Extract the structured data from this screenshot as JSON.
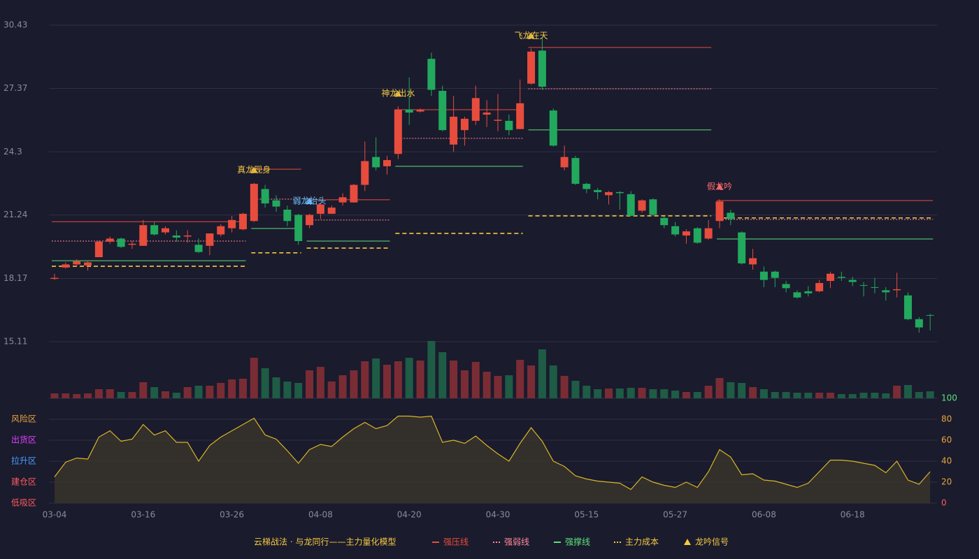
{
  "chart_data": {
    "type": "candlestick",
    "title": "云梯战法 · 与龙同行——主力量化模型",
    "categories": [
      "03-04",
      null,
      null,
      null,
      null,
      null,
      null,
      null,
      "03-16",
      null,
      null,
      null,
      null,
      null,
      null,
      null,
      "03-26",
      null,
      null,
      null,
      null,
      null,
      null,
      null,
      "04-08",
      null,
      null,
      null,
      null,
      null,
      null,
      null,
      "04-20",
      null,
      null,
      null,
      null,
      null,
      null,
      null,
      "04-30",
      null,
      null,
      null,
      null,
      null,
      null,
      null,
      "05-15",
      null,
      null,
      null,
      null,
      null,
      null,
      null,
      "05-27",
      null,
      null,
      null,
      null,
      null,
      null,
      null,
      "06-08",
      null,
      null,
      null,
      null,
      null,
      null,
      null,
      "06-18",
      null,
      null,
      null,
      null,
      null,
      null,
      null
    ],
    "ylim": [
      15.11,
      30.43
    ],
    "yticks": [
      30.43,
      27.37,
      24.3,
      21.24,
      18.17,
      15.11
    ],
    "up_color": "#e84c3d",
    "down_color": "#22a95e",
    "up_volume_color": "#7a2c35",
    "down_volume_color": "#1e5c45",
    "open": [
      18.15,
      18.7,
      18.85,
      18.8,
      19.2,
      19.95,
      20.1,
      19.8,
      19.75,
      20.75,
      20.4,
      20.25,
      20.2,
      19.8,
      19.75,
      20.3,
      20.6,
      20.55,
      20.95,
      22.5,
      21.95,
      21.5,
      21.25,
      20.75,
      21.3,
      21.3,
      21.85,
      21.85,
      22.7,
      24.05,
      23.6,
      24.2,
      26.35,
      26.25,
      28.8,
      27.25,
      24.65,
      25.35,
      25.8,
      26.1,
      25.8,
      25.8,
      25.4,
      27.6,
      29.2,
      26.3,
      23.55,
      24.0,
      22.75,
      22.45,
      22.2,
      22.35,
      22.25,
      21.45,
      22.0,
      21.1,
      20.7,
      20.25,
      20.6,
      20.1,
      20.95,
      21.35,
      20.4,
      18.85,
      18.5,
      18.5,
      17.9,
      17.5,
      17.55,
      17.55,
      18.05,
      18.25,
      18.1,
      17.85,
      17.75,
      17.6,
      17.6,
      17.35,
      16.2,
      16.4
    ],
    "close": [
      18.2,
      18.85,
      19.0,
      18.95,
      19.95,
      20.1,
      19.7,
      19.85,
      20.75,
      20.3,
      20.6,
      20.15,
      20.25,
      19.45,
      20.35,
      20.7,
      21.0,
      21.3,
      22.75,
      21.8,
      21.65,
      20.95,
      19.98,
      21.25,
      21.75,
      21.6,
      22.1,
      22.7,
      23.85,
      23.55,
      23.9,
      26.35,
      26.2,
      26.35,
      27.3,
      25.35,
      26.0,
      25.9,
      26.9,
      26.2,
      25.85,
      25.35,
      26.65,
      29.15,
      27.45,
      24.6,
      24.05,
      22.75,
      22.5,
      22.35,
      22.35,
      22.3,
      21.2,
      21.95,
      21.25,
      20.75,
      20.3,
      20.45,
      19.9,
      20.6,
      21.9,
      21.05,
      18.9,
      19.15,
      18.1,
      18.2,
      17.7,
      17.25,
      17.45,
      17.95,
      18.4,
      18.2,
      18.0,
      17.82,
      17.73,
      17.5,
      17.65,
      16.2,
      15.8,
      16.38
    ],
    "high": [
      18.4,
      18.95,
      19.1,
      19.0,
      20.0,
      20.2,
      20.15,
      20.0,
      21.0,
      20.9,
      20.7,
      20.5,
      20.5,
      20.1,
      20.35,
      20.8,
      21.2,
      21.35,
      22.8,
      22.7,
      22.2,
      21.7,
      21.3,
      21.3,
      21.8,
      21.7,
      22.3,
      22.75,
      24.8,
      25.0,
      24.1,
      26.5,
      27.9,
      26.4,
      29.1,
      27.5,
      27.0,
      26.0,
      27.5,
      26.8,
      27.1,
      26.1,
      27.8,
      29.3,
      29.8,
      26.4,
      24.6,
      24.1,
      22.8,
      22.55,
      22.4,
      22.4,
      22.4,
      22.0,
      22.05,
      21.15,
      20.9,
      20.55,
      20.65,
      21.0,
      22.0,
      21.5,
      20.45,
      19.6,
      18.75,
      18.55,
      18.05,
      17.6,
      17.8,
      18.1,
      18.5,
      18.5,
      18.25,
      18.0,
      18.2,
      17.75,
      18.45,
      17.5,
      16.3,
      16.45
    ],
    "low": [
      18.1,
      18.65,
      18.75,
      18.55,
      19.2,
      19.85,
      19.65,
      19.6,
      19.75,
      20.25,
      20.3,
      19.95,
      19.9,
      19.4,
      19.3,
      20.2,
      20.4,
      20.5,
      20.9,
      21.6,
      21.4,
      20.7,
      19.8,
      20.6,
      21.05,
      21.3,
      21.7,
      21.85,
      22.4,
      23.4,
      23.2,
      23.95,
      25.6,
      26.2,
      27.0,
      25.3,
      24.3,
      24.6,
      25.6,
      25.5,
      25.3,
      25.1,
      25.4,
      27.55,
      27.3,
      24.55,
      23.4,
      22.7,
      22.3,
      22.0,
      21.75,
      21.5,
      21.2,
      21.35,
      21.2,
      20.6,
      20.2,
      19.85,
      19.85,
      20.05,
      20.6,
      20.75,
      18.85,
      18.6,
      17.75,
      17.75,
      17.5,
      17.2,
      17.3,
      17.5,
      17.7,
      18.05,
      17.8,
      17.3,
      17.45,
      17.1,
      17.25,
      16.15,
      15.55,
      15.65
    ],
    "volume": [
      7,
      7,
      6,
      7,
      13,
      13,
      9,
      9,
      23,
      16,
      10,
      8,
      16,
      18,
      18,
      22,
      27,
      28,
      58,
      43,
      30,
      24,
      22,
      40,
      45,
      24,
      33,
      40,
      53,
      57,
      48,
      53,
      58,
      54,
      82,
      66,
      54,
      40,
      52,
      38,
      32,
      33,
      55,
      47,
      70,
      47,
      32,
      25,
      18,
      13,
      14,
      14,
      15,
      15,
      13,
      13,
      11,
      9,
      9,
      18,
      29,
      23,
      22,
      16,
      13,
      9,
      9,
      8,
      8,
      8,
      8,
      6,
      6,
      8,
      8,
      7,
      18,
      19,
      9,
      10
    ],
    "legend": [
      {
        "name": "强压线",
        "color": "#e84c3d",
        "dash": "none",
        "marker": "line"
      },
      {
        "name": "强弱线",
        "color": "#ff8a9a",
        "dash": "2,2",
        "marker": "line"
      },
      {
        "name": "强撑线",
        "color": "#5ee07a",
        "dash": "none",
        "marker": "line"
      },
      {
        "name": "主力成本",
        "color": "#f5c842",
        "dash": "6,4",
        "marker": "line"
      },
      {
        "name": "龙吟信号",
        "color": "#f5c842",
        "marker": "triangle"
      }
    ],
    "levels": [
      {
        "type": 0,
        "start": 0,
        "end": 17,
        "value": 20.92
      },
      {
        "type": 1,
        "start": 0,
        "end": 17,
        "value": 19.98
      },
      {
        "type": 2,
        "start": 0,
        "end": 17,
        "value": 19.03
      },
      {
        "type": 3,
        "start": 0,
        "end": 17,
        "value": 18.76
      },
      {
        "type": 0,
        "start": 18,
        "end": 22,
        "value": 23.46
      },
      {
        "type": 1,
        "start": 18,
        "end": 22,
        "value": 22.01
      },
      {
        "type": 2,
        "start": 18,
        "end": 22,
        "value": 20.59
      },
      {
        "type": 3,
        "start": 18,
        "end": 22,
        "value": 19.41
      },
      {
        "type": 0,
        "start": 23,
        "end": 30,
        "value": 21.98
      },
      {
        "type": 1,
        "start": 23,
        "end": 30,
        "value": 21.0
      },
      {
        "type": 2,
        "start": 23,
        "end": 30,
        "value": 19.98
      },
      {
        "type": 3,
        "start": 23,
        "end": 30,
        "value": 19.64
      },
      {
        "type": 0,
        "start": 31,
        "end": 42,
        "value": 26.34
      },
      {
        "type": 1,
        "start": 31,
        "end": 42,
        "value": 24.95
      },
      {
        "type": 2,
        "start": 31,
        "end": 42,
        "value": 23.6
      },
      {
        "type": 3,
        "start": 31,
        "end": 42,
        "value": 20.35
      },
      {
        "type": 0,
        "start": 43,
        "end": 59,
        "value": 29.35
      },
      {
        "type": 1,
        "start": 43,
        "end": 59,
        "value": 27.35
      },
      {
        "type": 2,
        "start": 43,
        "end": 59,
        "value": 25.36
      },
      {
        "type": 3,
        "start": 43,
        "end": 59,
        "value": 21.2
      },
      {
        "type": 0,
        "start": 60,
        "end": 79,
        "value": 21.94
      },
      {
        "type": 1,
        "start": 60,
        "end": 79,
        "value": 21.03
      },
      {
        "type": 2,
        "start": 60,
        "end": 79,
        "value": 20.08
      },
      {
        "type": 3,
        "start": 60,
        "end": 79,
        "value": 21.1
      }
    ],
    "signals": [
      {
        "index": 18,
        "label": "真龙现身",
        "color": "#f5c842"
      },
      {
        "index": 23,
        "label": "弱龙抬头",
        "color": "#6cc4ff"
      },
      {
        "index": 31,
        "label": "神龙出水",
        "color": "#f5c842"
      },
      {
        "index": 43,
        "label": "飞龙在天",
        "color": "#f5c842"
      },
      {
        "index": 60,
        "label": "假龙吟",
        "color": "#ff6b6b"
      }
    ],
    "indicator": {
      "color": "#d9b526",
      "fill": "#3a352b",
      "y2lim": [
        0,
        100
      ],
      "y2ticks": [
        {
          "value": 100,
          "color": "#5ee07a"
        },
        {
          "value": 80,
          "color": "#e8a33d"
        },
        {
          "value": 60,
          "color": "#e8a33d"
        },
        {
          "value": 40,
          "color": "#e8a33d"
        },
        {
          "value": 20,
          "color": "#e8a33d"
        },
        {
          "value": 0,
          "color": "#ff5a5a"
        }
      ],
      "zones": [
        {
          "label": "风险区",
          "value": 80,
          "color": "#e8a33d"
        },
        {
          "label": "出货区",
          "value": 60,
          "color": "#e040fb"
        },
        {
          "label": "拉升区",
          "value": 40,
          "color": "#4a9eff"
        },
        {
          "label": "建仓区",
          "value": 20,
          "color": "#ff5a5a"
        },
        {
          "label": "低吸区",
          "value": 0,
          "color": "#ff5a5a"
        }
      ],
      "values": [
        25,
        39,
        43,
        42,
        63,
        69,
        59,
        61,
        75,
        65,
        69,
        58,
        58,
        40,
        55,
        63,
        69,
        75,
        81,
        65,
        61,
        50,
        38,
        51,
        56,
        54,
        63,
        71,
        77,
        71,
        74,
        83,
        83,
        82,
        83,
        58,
        60,
        57,
        64,
        55,
        47,
        40,
        57,
        72,
        59,
        40,
        35,
        26,
        23,
        21,
        20,
        19,
        13,
        25,
        20,
        17,
        15,
        20,
        15,
        30,
        51,
        44,
        27,
        28,
        22,
        21,
        18,
        15,
        19,
        30,
        41,
        41,
        40,
        38,
        36,
        29,
        40,
        22,
        18,
        30
      ]
    }
  }
}
